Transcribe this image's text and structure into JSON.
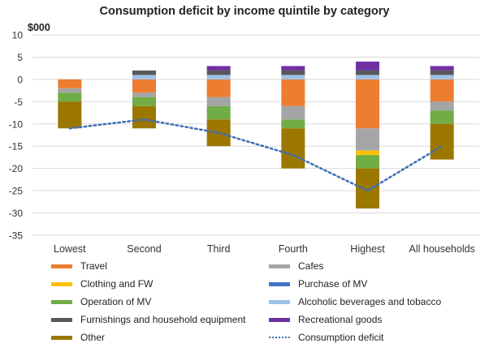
{
  "chart_data": {
    "type": "bar",
    "stacked": true,
    "title": "Consumption deficit by income quintile by category",
    "ylabel": "$000",
    "xlabel": "",
    "ylim": [
      -35,
      10
    ],
    "yticks": [
      10,
      5,
      0,
      -5,
      -10,
      -15,
      -20,
      -25,
      -30,
      -35
    ],
    "grid": true,
    "legend_position": "bottom",
    "categories": [
      "Lowest",
      "Second",
      "Third",
      "Fourth",
      "Highest",
      "All households"
    ],
    "series": [
      {
        "name": "Travel",
        "color": "#ed7d31",
        "values": [
          -2,
          -3,
          -4,
          -6,
          -11,
          -5
        ]
      },
      {
        "name": "Cafes",
        "color": "#a5a5a5",
        "values": [
          -1,
          -1,
          -2,
          -3,
          -5,
          -2
        ]
      },
      {
        "name": "Clothing and FW",
        "color": "#ffc000",
        "values": [
          0,
          0,
          0,
          0,
          -1,
          0
        ]
      },
      {
        "name": "Purchase of MV",
        "color": "#4472c4",
        "values": [
          0,
          0,
          0,
          0,
          0,
          0
        ]
      },
      {
        "name": "Operation of MV",
        "color": "#70ad47",
        "values": [
          -2,
          -2,
          -3,
          -2,
          -3,
          -3
        ]
      },
      {
        "name": "Alcoholic beverages and tobacco",
        "color": "#9dc3e6",
        "values": [
          0,
          1,
          1,
          1,
          1,
          1
        ]
      },
      {
        "name": "Furnishings and household equipment",
        "color": "#595959",
        "values": [
          0,
          1,
          1,
          1,
          1,
          1
        ]
      },
      {
        "name": "Recreational goods",
        "color": "#7030a0",
        "values": [
          0,
          0,
          1,
          1,
          2,
          1
        ]
      },
      {
        "name": "Other",
        "color": "#9c7700",
        "values": [
          -6,
          -5,
          -6,
          -9,
          -9,
          -8
        ]
      }
    ],
    "line_series": {
      "name": "Consumption deficit",
      "color": "#3b6fb6",
      "style": "dotted",
      "values": [
        -11,
        -9,
        -12,
        -17,
        -25,
        -15
      ]
    }
  }
}
